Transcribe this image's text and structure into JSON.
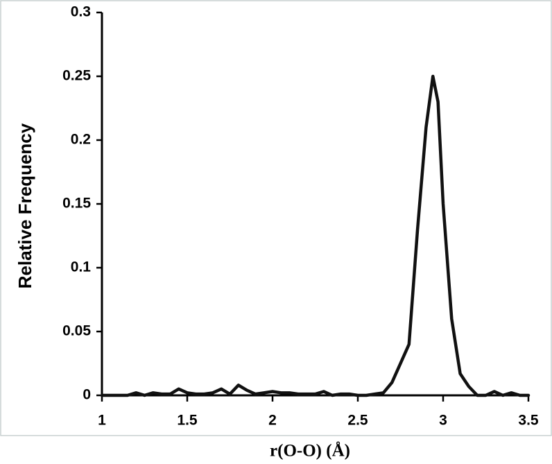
{
  "chart_data": {
    "type": "line",
    "x_label": "r(O-O) (Å)",
    "y_label": "Relative Frequency",
    "x": [
      1.0,
      1.1,
      1.15,
      1.2,
      1.25,
      1.3,
      1.35,
      1.4,
      1.45,
      1.5,
      1.55,
      1.6,
      1.65,
      1.7,
      1.75,
      1.8,
      1.85,
      1.9,
      1.95,
      2.0,
      2.05,
      2.1,
      2.15,
      2.2,
      2.25,
      2.3,
      2.35,
      2.4,
      2.45,
      2.5,
      2.55,
      2.6,
      2.65,
      2.7,
      2.75,
      2.8,
      2.85,
      2.9,
      2.94,
      2.97,
      3.0,
      3.05,
      3.1,
      3.15,
      3.2,
      3.25,
      3.3,
      3.35,
      3.4,
      3.45,
      3.5
    ],
    "series": [
      {
        "color": "#111111",
        "values": [
          0,
          0,
          0,
          0.002,
          0,
          0.002,
          0.001,
          0.001,
          0.005,
          0.002,
          0.001,
          0.001,
          0.002,
          0.005,
          0.001,
          0.008,
          0.004,
          0.001,
          0.002,
          0.003,
          0.002,
          0.002,
          0.001,
          0.001,
          0.001,
          0.003,
          0,
          0.001,
          0.001,
          0,
          0,
          0.001,
          0.002,
          0.01,
          0.025,
          0.04,
          0.13,
          0.21,
          0.25,
          0.23,
          0.15,
          0.06,
          0.017,
          0.007,
          0,
          0,
          0.003,
          0,
          0.002,
          0,
          0
        ]
      }
    ],
    "xlim": [
      1,
      3.5
    ],
    "ylim": [
      0,
      0.3
    ],
    "xticks": [
      1,
      1.5,
      2,
      2.5,
      3,
      3.5
    ],
    "yticks": [
      0,
      0.05,
      0.1,
      0.15,
      0.2,
      0.25,
      0.3
    ],
    "grid": false
  }
}
